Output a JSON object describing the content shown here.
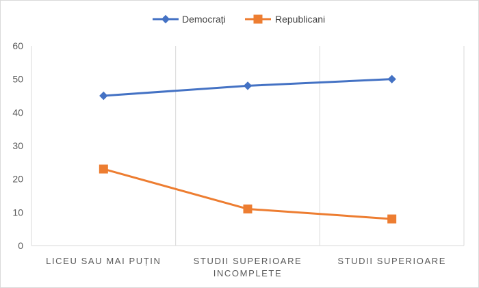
{
  "chart_data": {
    "type": "line",
    "categories": [
      [
        "LICEU SAU MAI PUȚIN"
      ],
      [
        "STUDII SUPERIOARE",
        "INCOMPLETE"
      ],
      [
        "STUDII SUPERIOARE"
      ]
    ],
    "series": [
      {
        "name": "Democrați",
        "values": [
          45,
          48,
          50
        ],
        "color": "#4472C4",
        "marker": "diamond"
      },
      {
        "name": "Republicani",
        "values": [
          23,
          11,
          8
        ],
        "color": "#ED7D31",
        "marker": "square"
      }
    ],
    "ylim": [
      0,
      60
    ],
    "yticks": [
      0,
      10,
      20,
      30,
      40,
      50,
      60
    ],
    "grid": "vertical-category-separators",
    "legend_position": "top-center",
    "title": "",
    "xlabel": "",
    "ylabel": ""
  }
}
